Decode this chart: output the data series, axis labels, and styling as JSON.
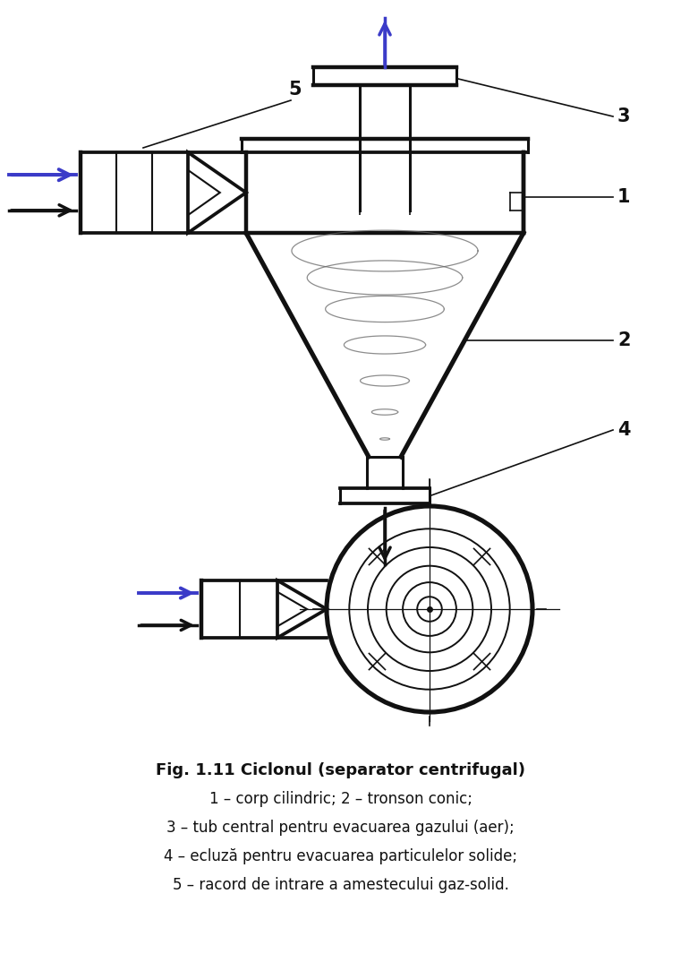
{
  "title_bold": "Fig. 1.11 Ciclonul (separator centrifugal)",
  "caption_lines": [
    "1 – corp cilindric; 2 – tronson conic;",
    "3 – tub central pentru evacuarea gazului (aer);",
    "4 – ecluză pentru evacuarea particulelor solide;",
    "5 – racord de intrare a amestecului gaz-solid."
  ],
  "blue_color": "#3b3bc8",
  "black_color": "#111111",
  "lw_main": 2.2,
  "lw_thin": 1.2,
  "bg_color": "#ffffff"
}
